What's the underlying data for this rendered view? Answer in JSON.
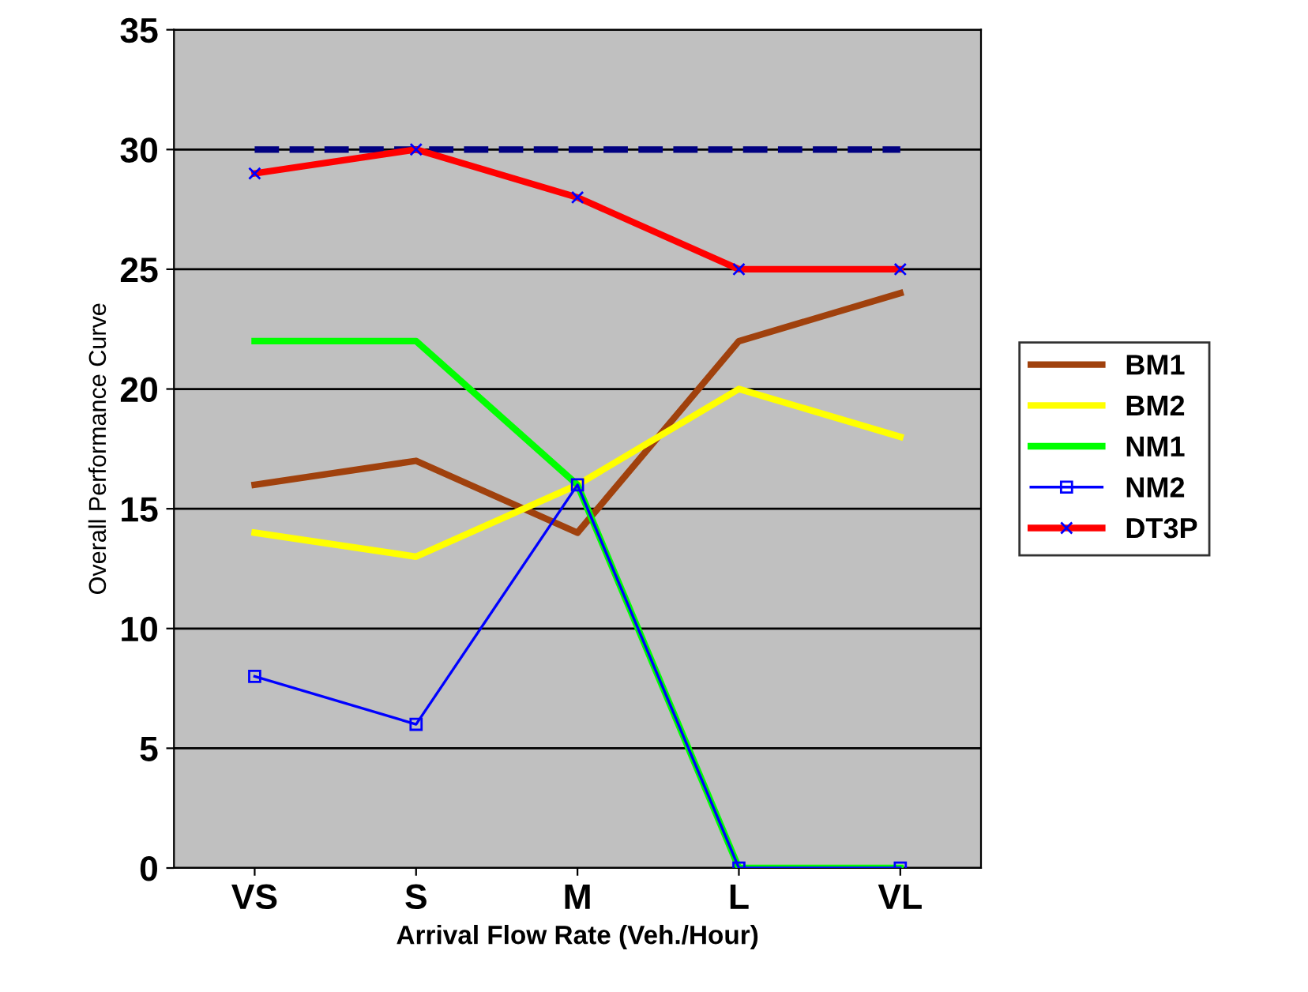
{
  "chart_data": {
    "type": "line",
    "xlabel": "Arrival Flow Rate (Veh./Hour)",
    "ylabel": "Overall Performance Curve",
    "categories": [
      "VS",
      "S",
      "M",
      "L",
      "VL"
    ],
    "series": [
      {
        "name": "BM1",
        "color": "#a0410d",
        "values": [
          16,
          17,
          14,
          22,
          24
        ],
        "marker": "none"
      },
      {
        "name": "BM2",
        "color": "#ffff00",
        "values": [
          14,
          13,
          16,
          20,
          18
        ],
        "marker": "none"
      },
      {
        "name": "NM1",
        "color": "#00ff00",
        "values": [
          22,
          22,
          16,
          0,
          0
        ],
        "marker": "none"
      },
      {
        "name": "NM2",
        "color": "#0000ff",
        "values": [
          8,
          6,
          16,
          0,
          0
        ],
        "marker": "square"
      },
      {
        "name": "DT3P",
        "color": "#ff0000",
        "values": [
          29,
          30,
          28,
          25,
          25
        ],
        "marker": "cross"
      }
    ],
    "ref_lines": [
      {
        "axis": "y",
        "value": 30,
        "color": "#000080",
        "line_style": "dashed"
      }
    ],
    "ylim": [
      0,
      35
    ],
    "yticks": [
      0,
      5,
      10,
      15,
      20,
      25,
      30,
      35
    ],
    "grid": "y",
    "legend": "right"
  }
}
